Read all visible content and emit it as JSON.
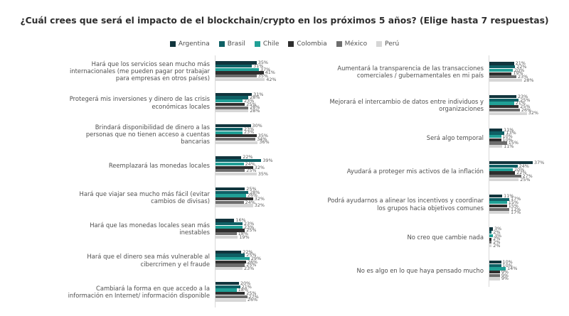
{
  "title": "¿Cuál crees que será el impacto de el blockchain/crypto en los próximos 5 años? (Elige hasta 7 respuestas)",
  "chart_data": {
    "type": "bar",
    "orientation": "horizontal",
    "unit": "%",
    "xlim": [
      0,
      45
    ],
    "legend_position": "top-center",
    "series": [
      "Argentina",
      "Brasil",
      "Chile",
      "Colombia",
      "México",
      "Perú"
    ],
    "colors": [
      "#11353d",
      "#0f6065",
      "#20a096",
      "#2e2e2e",
      "#6d6d6d",
      "#d6d6d6"
    ],
    "columns": [
      {
        "groups": [
          {
            "label": "Hará que los servicios sean mucho más internacionales (me pueden pagar por trabajar para empresas en otros países)",
            "values": [
              35,
              31,
              37,
              41,
              35,
              42
            ]
          },
          {
            "label": "Protegerá mis inversiones y dinero de las crisis económicas locales",
            "values": [
              31,
              28,
              23,
              25,
              28,
              28
            ]
          },
          {
            "label": "Brindará disponibilidad de dinero a las personas que no tienen acceso a cuentas bancarias",
            "values": [
              30,
              23,
              23,
              35,
              34,
              36
            ]
          },
          {
            "label": "Reemplazará las monedas locales",
            "values": [
              22,
              39,
              24,
              32,
              25,
              35
            ]
          },
          {
            "label": "Hará que viajar sea mucho más fácil (evitar cambios de divisas)",
            "values": [
              25,
              28,
              26,
              32,
              24,
              32
            ]
          },
          {
            "label": "Hará que las monedas locales sean más inestables",
            "values": [
              16,
              23,
              23,
              25,
              18,
              19
            ]
          },
          {
            "label": "Hará que el dinero sea más vulnerable al cibercrimen y el fraude",
            "values": [
              22,
              25,
              29,
              26,
              25,
              23
            ]
          },
          {
            "label": "Cambiará la forma en que accedo a la información en Internet/ información disponible",
            "values": [
              20,
              21,
              18,
              25,
              27,
              26
            ]
          }
        ]
      },
      {
        "groups": [
          {
            "label": "Aumentará la transparencia de las transacciones comerciales / gubernamentales en mi país",
            "values": [
              21,
              22,
              20,
              19,
              23,
              28
            ]
          },
          {
            "label": "Mejorará el intercambio de datos entre individuos y organizaciones",
            "values": [
              23,
              25,
              21,
              25,
              26,
              32
            ]
          },
          {
            "label": "Será algo temporal",
            "values": [
              11,
              13,
              10,
              10,
              15,
              11
            ]
          },
          {
            "label": "Ayudará a proteger mis activos de la inflación",
            "values": [
              37,
              24,
              20,
              22,
              27,
              25
            ]
          },
          {
            "label": "Podrá ayudarnos a alinear los incentivos y coordinar los grupos hacia objetivos comunes",
            "values": [
              11,
              17,
              15,
              15,
              17,
              17
            ]
          },
          {
            "label": "No creo que cambie nada",
            "values": [
              3,
              2,
              3,
              2,
              2,
              2
            ]
          },
          {
            "label": "No es algo en lo que haya pensado mucho",
            "values": [
              10,
              10,
              14,
              9,
              9,
              9
            ]
          }
        ]
      }
    ]
  }
}
